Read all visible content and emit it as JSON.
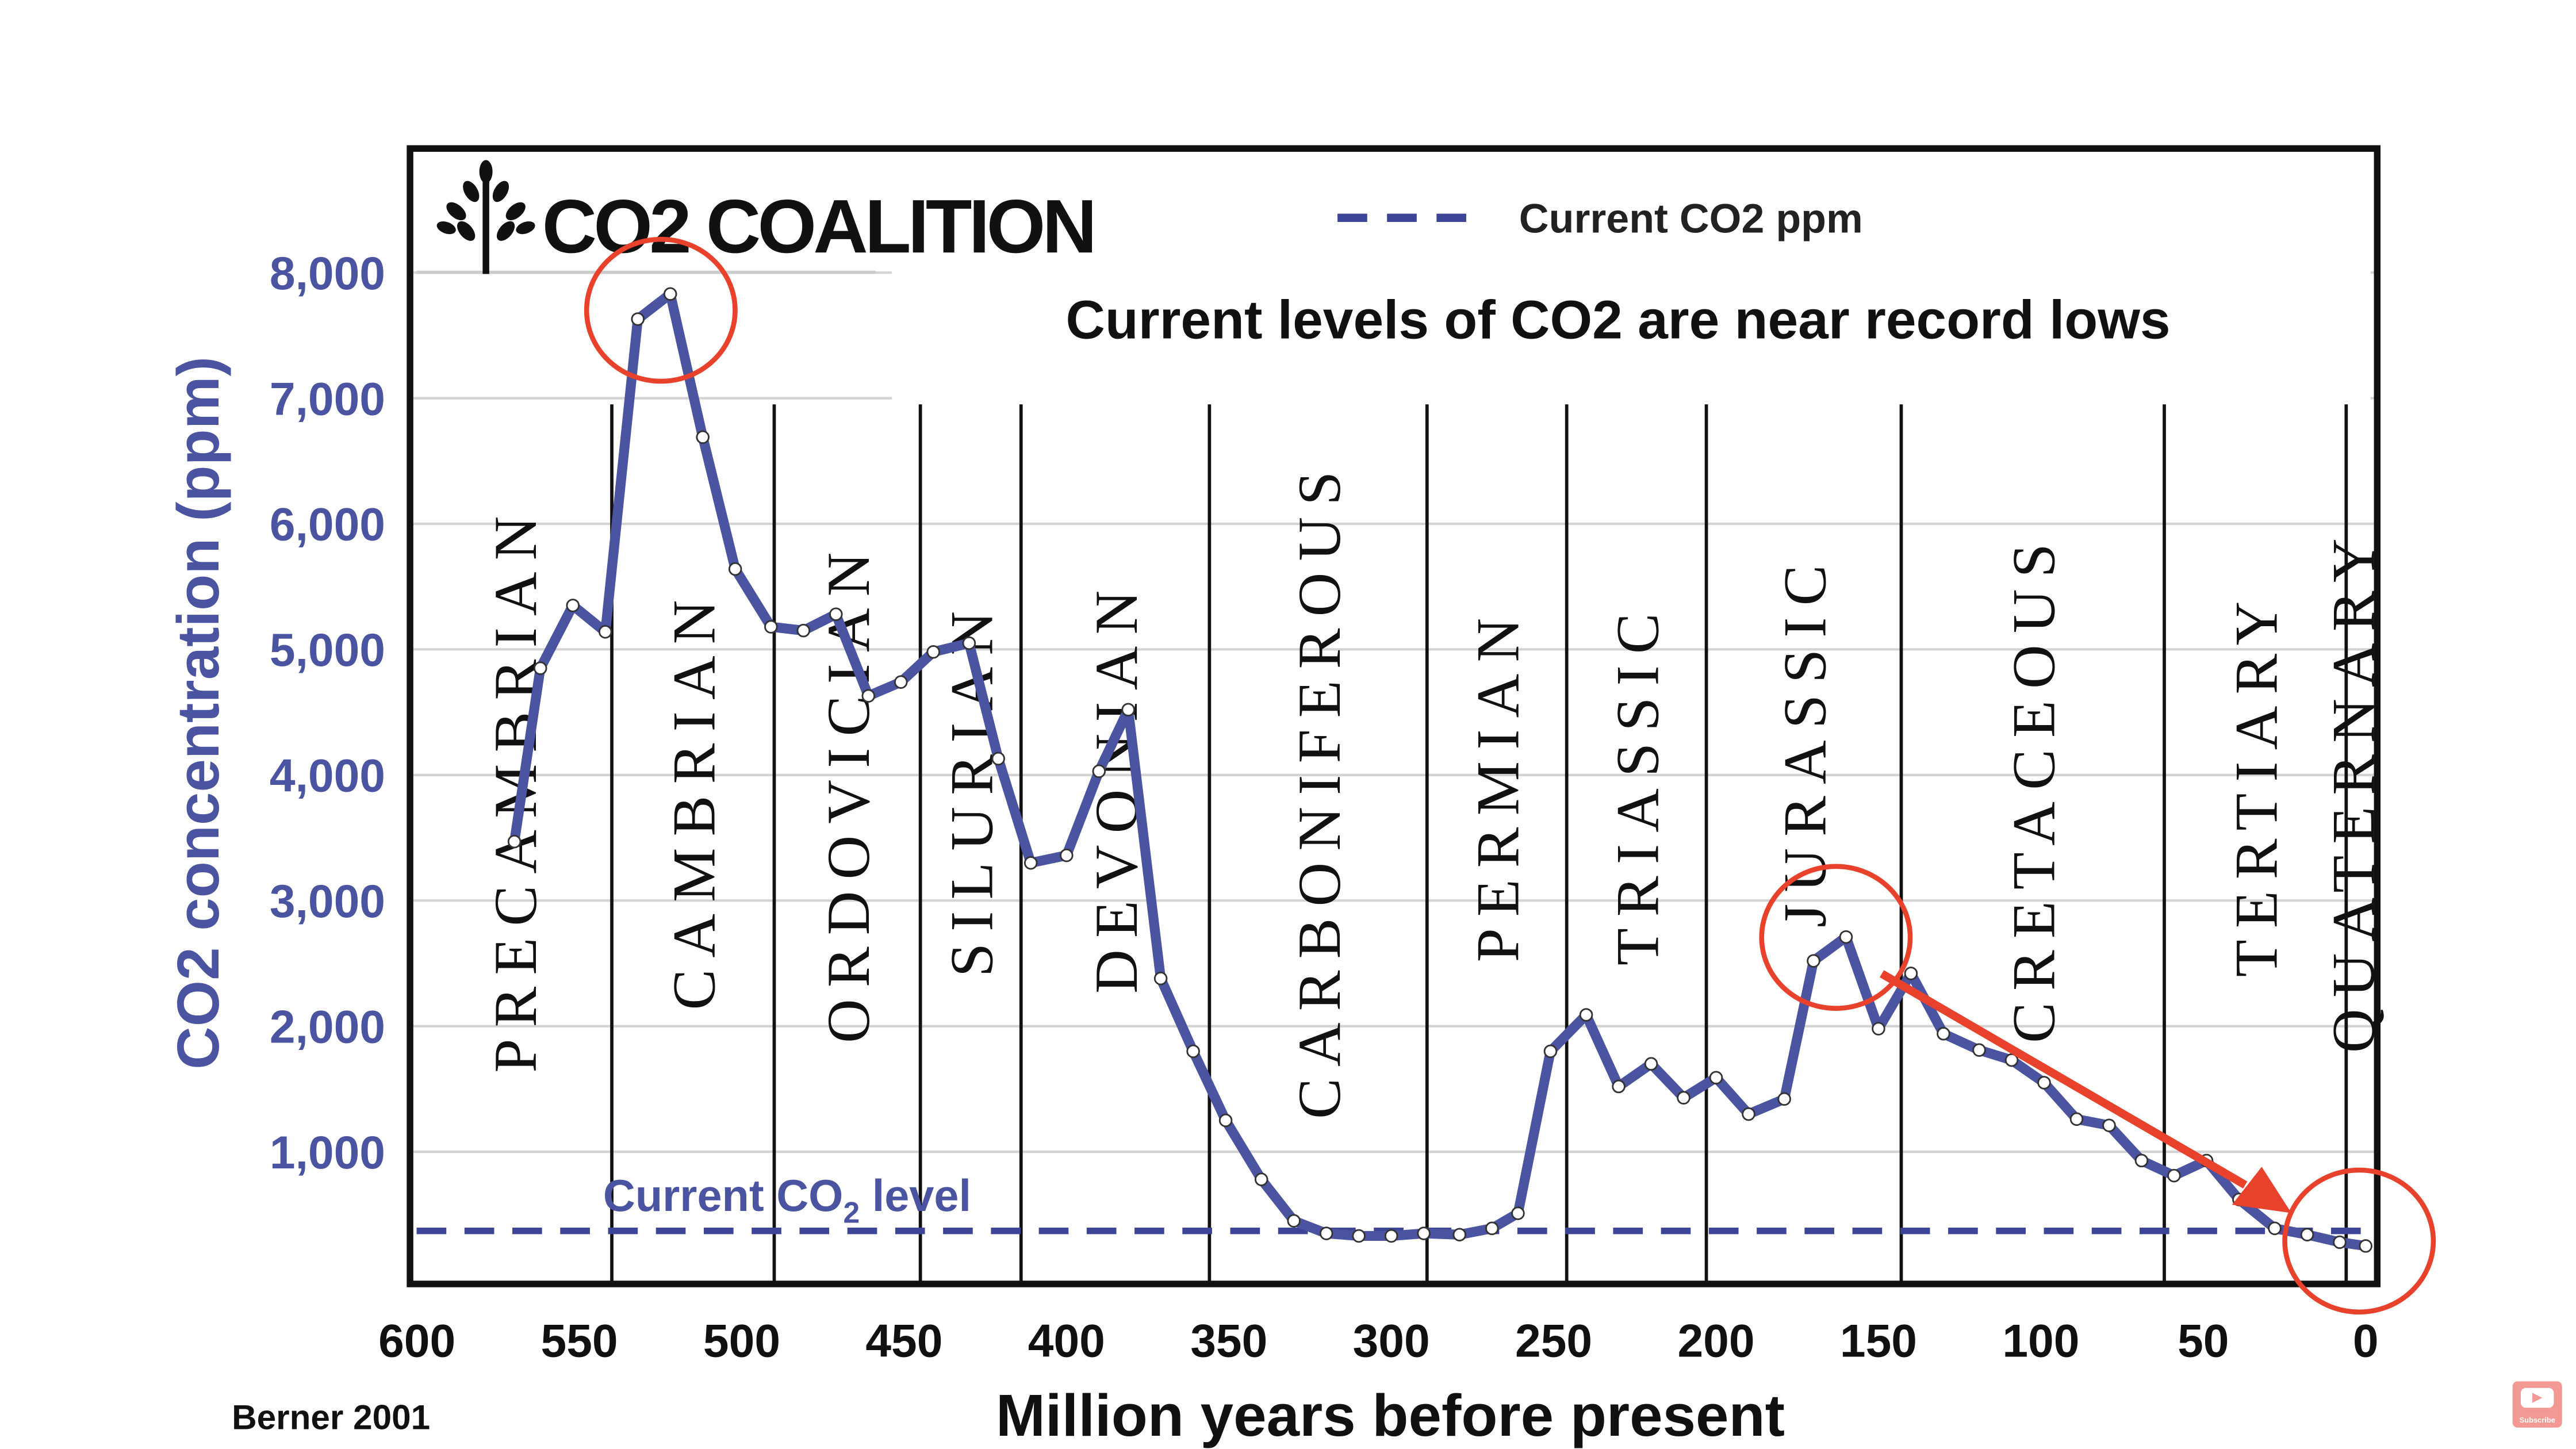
{
  "chart_data": {
    "type": "line",
    "title": "Current levels of CO2 are near record lows",
    "brand": "CO2 COALITION",
    "xlabel": "Million years before present",
    "ylabel": "CO2 concentration (ppm)",
    "xlim": [
      600,
      0
    ],
    "ylim": [
      0,
      8500
    ],
    "x_ticks": [
      600,
      550,
      500,
      450,
      400,
      350,
      300,
      250,
      200,
      150,
      100,
      50,
      0
    ],
    "x_tick_labels": [
      "600",
      "550",
      "500",
      "450",
      "400",
      "350",
      "300",
      "250",
      "200",
      "150",
      "100",
      "50",
      "0"
    ],
    "y_ticks": [
      1000,
      2000,
      3000,
      4000,
      5000,
      6000,
      7000,
      8000
    ],
    "y_tick_labels": [
      "1,000",
      "2,000",
      "3,000",
      "4,000",
      "5,000",
      "6,000",
      "7,000",
      "8,000"
    ],
    "grid": true,
    "legend": {
      "placement": "top-right",
      "entries": [
        {
          "label": "Current CO2 ppm",
          "style": "dashed",
          "color": "#3d4597"
        }
      ]
    },
    "series": [
      {
        "name": "CO2 (ppm)",
        "color": "#4a54a0",
        "x": [
          570,
          562,
          552,
          542,
          532,
          522,
          512,
          502,
          491,
          481,
          471,
          461,
          451,
          441,
          430,
          421,
          411,
          400,
          390,
          381,
          371,
          361,
          351,
          340,
          330,
          320,
          310,
          300,
          290,
          279,
          269,
          261,
          251,
          240,
          230,
          220,
          210,
          200,
          190,
          179,
          170,
          160,
          150,
          140,
          130,
          119,
          109,
          99,
          89,
          79,
          69,
          59,
          49,
          39,
          28,
          18,
          8,
          0
        ],
        "y": [
          3470,
          4850,
          5350,
          5140,
          7630,
          7830,
          6690,
          5640,
          5180,
          5150,
          5280,
          4630,
          4740,
          4980,
          5050,
          4130,
          3300,
          3360,
          4030,
          4520,
          2380,
          1800,
          1250,
          780,
          450,
          350,
          330,
          330,
          350,
          340,
          390,
          510,
          1800,
          2090,
          1520,
          1700,
          1430,
          1590,
          1300,
          1420,
          2520,
          2710,
          1980,
          2420,
          1940,
          1810,
          1730,
          1550,
          1260,
          1210,
          930,
          810,
          930,
          620,
          390,
          340,
          280,
          250
        ]
      }
    ],
    "reference_line": {
      "label": "Current CO2 level",
      "value": 370,
      "color": "#3d4597"
    },
    "periods": [
      {
        "name": "PRECAMBRIAN",
        "end": 540
      },
      {
        "name": "CAMBRIAN",
        "end": 490
      },
      {
        "name": "ORDOVICIAN",
        "end": 445
      },
      {
        "name": "SILURIAN",
        "end": 414
      },
      {
        "name": "DEVONIAN",
        "end": 356
      },
      {
        "name": "CARBONIFEROUS",
        "end": 289
      },
      {
        "name": "PERMIAN",
        "end": 246
      },
      {
        "name": "TRIASSIC",
        "end": 203
      },
      {
        "name": "JURASSIC",
        "end": 143
      },
      {
        "name": "CRETACEOUS",
        "end": 62
      },
      {
        "name": "TERTIARY",
        "end": 6
      },
      {
        "name": "QUATERNARY",
        "end": 0
      }
    ],
    "annotations": {
      "color": "#e8412c",
      "circled_points_ma": [
        527,
        165,
        3
      ],
      "arrow_from_to_ma": [
        150,
        20
      ]
    },
    "source": "Berner 2001"
  },
  "overlay": {
    "subscribe_label": "Subscribe"
  }
}
